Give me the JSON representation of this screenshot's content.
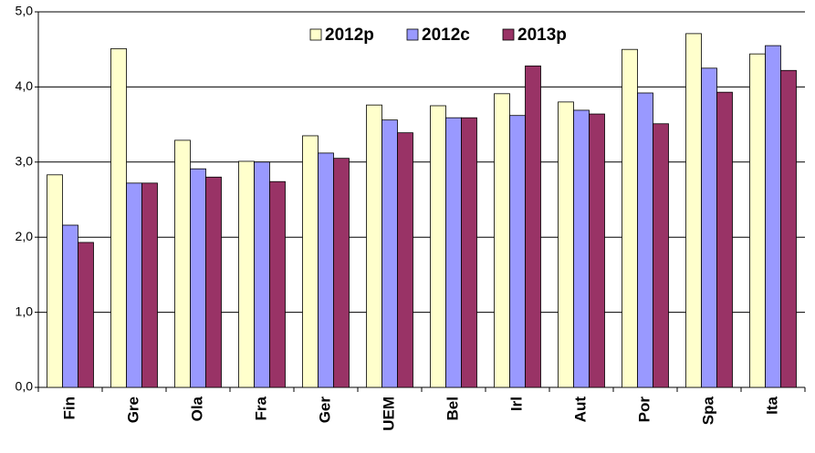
{
  "chart_data": {
    "type": "bar",
    "categories": [
      "Fin",
      "Gre",
      "Ola",
      "Fra",
      "Ger",
      "UEM",
      "Bel",
      "Irl",
      "Aut",
      "Por",
      "Spa",
      "Ita"
    ],
    "series": [
      {
        "name": "2012p",
        "color": "#ffffcc",
        "values": [
          2.83,
          4.51,
          3.29,
          3.01,
          3.35,
          3.76,
          3.75,
          3.91,
          3.8,
          4.5,
          4.71,
          4.44
        ]
      },
      {
        "name": "2012c",
        "color": "#9999ff",
        "values": [
          2.16,
          2.72,
          2.91,
          3.0,
          3.12,
          3.56,
          3.59,
          3.62,
          3.69,
          3.92,
          4.25,
          4.55
        ]
      },
      {
        "name": "2013p",
        "color": "#993366",
        "values": [
          1.93,
          2.72,
          2.8,
          2.74,
          3.05,
          3.39,
          3.59,
          4.28,
          3.64,
          3.51,
          3.93,
          4.22
        ]
      }
    ],
    "ylim": [
      0,
      5
    ],
    "yticks": [
      {
        "value": 0,
        "label": "0,0"
      },
      {
        "value": 1,
        "label": "1,0"
      },
      {
        "value": 2,
        "label": "2,0"
      },
      {
        "value": 3,
        "label": "3,0"
      },
      {
        "value": 4,
        "label": "4,0"
      },
      {
        "value": 5,
        "label": "5,0"
      }
    ],
    "grid": true,
    "legend": "top"
  }
}
